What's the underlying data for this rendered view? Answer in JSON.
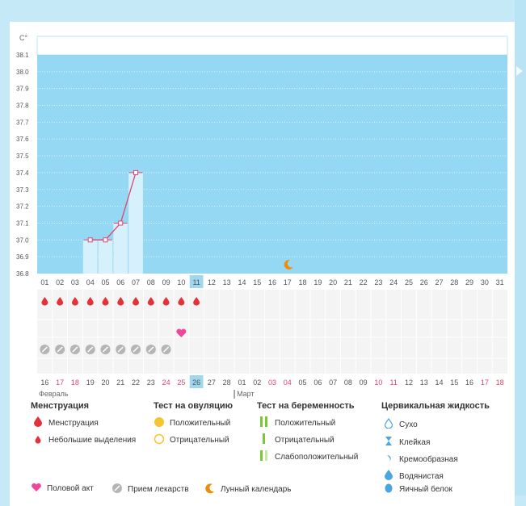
{
  "chart_data": {
    "type": "line",
    "ylabel": "C°",
    "y_ticks": [
      "38.1",
      "38.0",
      "37.9",
      "37.8",
      "37.7",
      "37.6",
      "37.5",
      "37.4",
      "37.3",
      "37.2",
      "37.1",
      "37.0",
      "36.9",
      "36.8"
    ],
    "ylim": [
      36.8,
      38.1
    ],
    "day_labels": [
      "01",
      "02",
      "03",
      "04",
      "05",
      "06",
      "07",
      "08",
      "09",
      "10",
      "11",
      "12",
      "13",
      "14",
      "15",
      "16",
      "17",
      "18",
      "19",
      "20",
      "21",
      "22",
      "23",
      "24",
      "25",
      "26",
      "27",
      "28",
      "29",
      "30",
      "31"
    ],
    "highlight_day": "11",
    "temperature": [
      {
        "day": "04",
        "value": 37.0
      },
      {
        "day": "05",
        "value": 37.0
      },
      {
        "day": "06",
        "value": 37.1
      },
      {
        "day": "07",
        "value": 37.4
      }
    ],
    "shaded_days": [
      "04",
      "05",
      "06",
      "07"
    ],
    "menstruation_days": [
      "01",
      "02",
      "03",
      "04",
      "05",
      "06",
      "07",
      "08",
      "09",
      "10",
      "11"
    ],
    "intercourse_days": [
      "10"
    ],
    "medication_days": [
      "01",
      "02",
      "03",
      "04",
      "05",
      "06",
      "07",
      "08",
      "09"
    ],
    "moon_day": "17",
    "date_labels": [
      {
        "text": "16",
        "red": false
      },
      {
        "text": "17",
        "red": true
      },
      {
        "text": "18",
        "red": true
      },
      {
        "text": "19",
        "red": false
      },
      {
        "text": "20",
        "red": false
      },
      {
        "text": "21",
        "red": false
      },
      {
        "text": "22",
        "red": false
      },
      {
        "text": "23",
        "red": false
      },
      {
        "text": "24",
        "red": true
      },
      {
        "text": "25",
        "red": true
      },
      {
        "text": "26",
        "red": false,
        "highlight": true
      },
      {
        "text": "27",
        "red": false
      },
      {
        "text": "28",
        "red": false
      },
      {
        "text": "01",
        "red": false
      },
      {
        "text": "02",
        "red": false
      },
      {
        "text": "03",
        "red": true
      },
      {
        "text": "04",
        "red": true
      },
      {
        "text": "05",
        "red": false
      },
      {
        "text": "06",
        "red": false
      },
      {
        "text": "07",
        "red": false
      },
      {
        "text": "08",
        "red": false
      },
      {
        "text": "09",
        "red": false
      },
      {
        "text": "10",
        "red": true
      },
      {
        "text": "11",
        "red": true
      },
      {
        "text": "12",
        "red": false
      },
      {
        "text": "13",
        "red": false
      },
      {
        "text": "14",
        "red": false
      },
      {
        "text": "15",
        "red": false
      },
      {
        "text": "16",
        "red": false
      },
      {
        "text": "17",
        "red": true
      },
      {
        "text": "18",
        "red": true
      }
    ],
    "month_labels": [
      "Февраль",
      "Март"
    ]
  },
  "colors": {
    "plot_fill": "#94d8f3",
    "shade_bar": "#d6f0fc",
    "line": "#e0456e",
    "red_text": "#e0456e",
    "drop": "#e2333a",
    "heart": "#f0469a",
    "pill": "#b5b5b5",
    "moon": "#f08c0c",
    "highlight_box": "#9fd8ee"
  },
  "legend": {
    "menstruation": {
      "title": "Менструация",
      "items": [
        "Менструация",
        "Небольшие выделения"
      ]
    },
    "ovulation": {
      "title": "Тест на овуляцию",
      "items": [
        "Положительный",
        "Отрицательный"
      ]
    },
    "pregnancy": {
      "title": "Тест на беременность",
      "items": [
        "Положительный",
        "Отрицательный",
        "Слабоположительный"
      ]
    },
    "cervical": {
      "title": "Цервикальная жидкость",
      "items": [
        "Сухо",
        "Клейкая",
        "Кремообразная",
        "Водянистая",
        "Яичный белок"
      ]
    },
    "bottom": [
      "Половой акт",
      "Прием лекарств",
      "Лунный календарь"
    ]
  }
}
